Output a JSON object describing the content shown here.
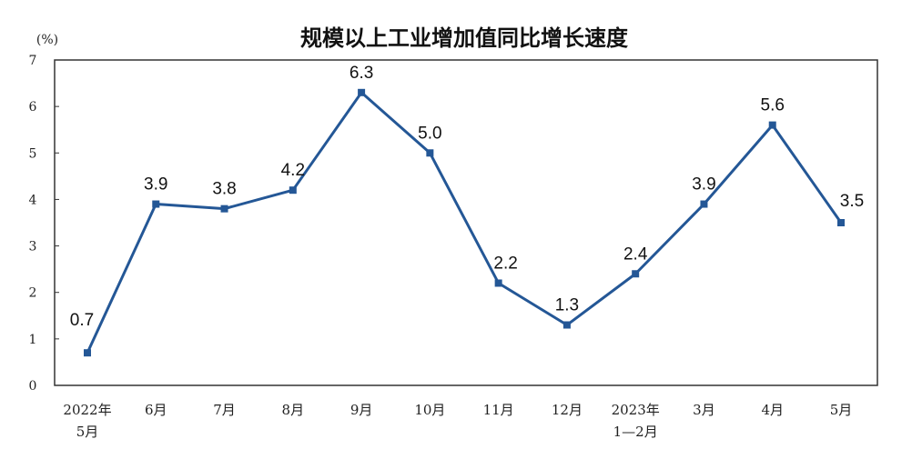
{
  "chart_data": {
    "type": "line",
    "title": "规模以上工业增加值同比增长速度",
    "unit_label": "(%)",
    "xlabel": "",
    "ylabel": "",
    "ylim": [
      0,
      7
    ],
    "yticks": [
      "0",
      "1",
      "2",
      "3",
      "4",
      "5",
      "6",
      "7"
    ],
    "categories": [
      [
        "2022年",
        "5月"
      ],
      [
        "6月"
      ],
      [
        "7月"
      ],
      [
        "8月"
      ],
      [
        "9月"
      ],
      [
        "10月"
      ],
      [
        "11月"
      ],
      [
        "12月"
      ],
      [
        "2023年",
        "1—2月"
      ],
      [
        "3月"
      ],
      [
        "4月"
      ],
      [
        "5月"
      ]
    ],
    "series": [
      {
        "values": [
          0.7,
          3.9,
          3.8,
          4.2,
          6.3,
          5.0,
          2.2,
          1.3,
          2.4,
          3.9,
          5.6,
          3.5
        ],
        "labels": [
          "0.7",
          "3.9",
          "3.8",
          "4.2",
          "6.3",
          "5.0",
          "2.2",
          "1.3",
          "2.4",
          "3.9",
          "5.6",
          "3.5"
        ]
      }
    ],
    "grid": false,
    "line_color": "#245796"
  }
}
